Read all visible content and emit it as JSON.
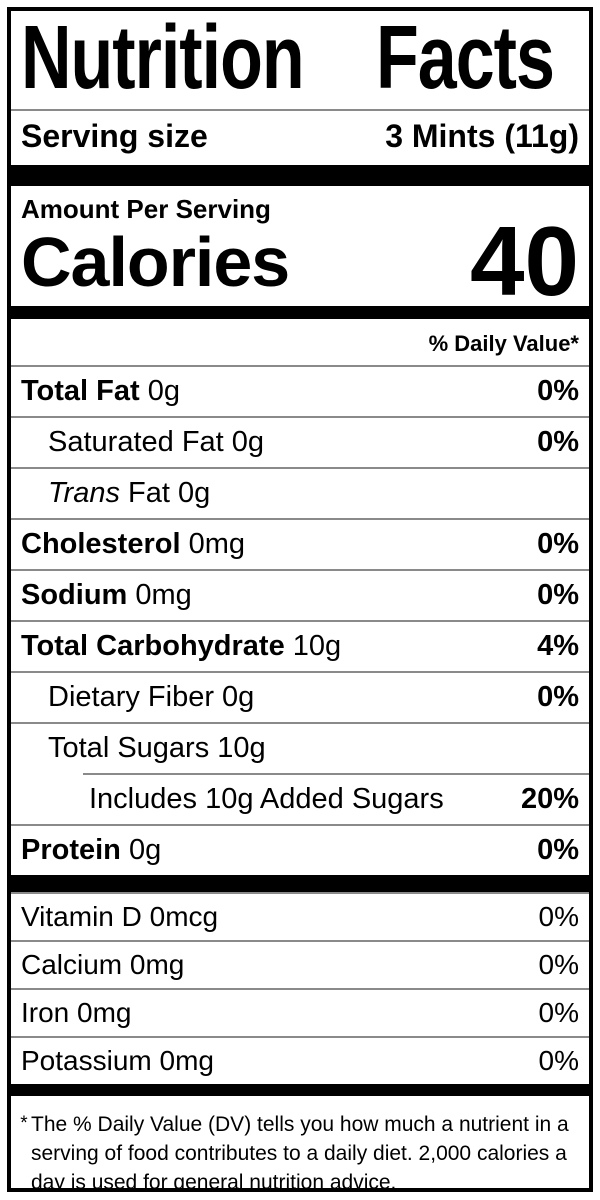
{
  "title": "Nutrition Facts",
  "serving": {
    "label": "Serving size",
    "value": "3 Mints (11g)"
  },
  "calories": {
    "header": "Amount Per Serving",
    "label": "Calories",
    "value": "40"
  },
  "daily_value_header": "% Daily Value*",
  "nutrients": [
    {
      "bold": "Total Fat ",
      "italic": "",
      "rest": "0g",
      "pct": "0%"
    },
    {
      "bold": "",
      "italic": "",
      "rest": "Saturated Fat 0g",
      "pct": "0%"
    },
    {
      "bold": "",
      "italic": "Trans ",
      "rest": "Fat 0g",
      "pct": ""
    },
    {
      "bold": "Cholesterol ",
      "italic": "",
      "rest": "0mg",
      "pct": "0%"
    },
    {
      "bold": "Sodium ",
      "italic": "",
      "rest": "0mg",
      "pct": "0%"
    },
    {
      "bold": "Total Carbohydrate ",
      "italic": "",
      "rest": "10g",
      "pct": "4%"
    },
    {
      "bold": "",
      "italic": "",
      "rest": "Dietary Fiber 0g",
      "pct": "0%"
    },
    {
      "bold": "",
      "italic": "",
      "rest": "Total Sugars 10g",
      "pct": ""
    },
    {
      "bold": "",
      "italic": "",
      "rest": "Includes 10g Added Sugars",
      "pct": "20%"
    },
    {
      "bold": "Protein ",
      "italic": "",
      "rest": "0g",
      "pct": "0%"
    }
  ],
  "vitamins": [
    {
      "text": "Vitamin D 0mcg",
      "pct": "0%"
    },
    {
      "text": "Calcium 0mg",
      "pct": "0%"
    },
    {
      "text": "Iron 0mg",
      "pct": "0%"
    },
    {
      "text": "Potassium 0mg",
      "pct": "0%"
    }
  ],
  "footnote": {
    "marker": "*",
    "lines": [
      "The % Daily Value (DV) tells you how much a nutrient in a",
      "serving of food contributes to a daily diet. 2,000 calories a",
      "day is used for general nutrition advice."
    ]
  },
  "colors": {
    "text": "#000000",
    "bar": "#000000",
    "hairline": "#8a8a8a",
    "background": "#ffffff"
  }
}
